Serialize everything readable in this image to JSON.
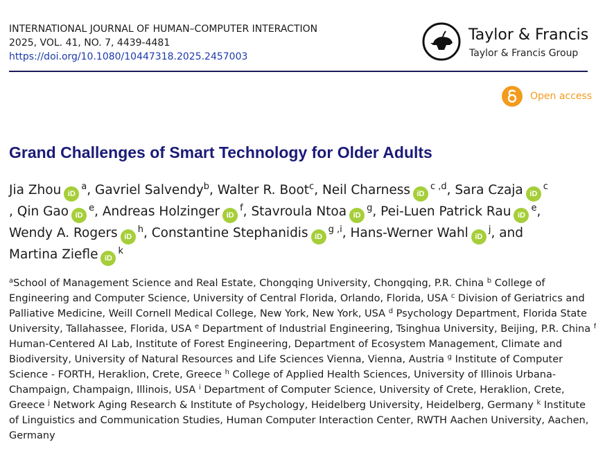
{
  "journal": {
    "name": "INTERNATIONAL JOURNAL OF HUMAN–COMPUTER INTERACTION",
    "issue": "2025, VOL. 41, NO. 7, 4439-4481",
    "doi": "https://doi.org/10.1080/10447318.2025.2457003"
  },
  "publisher": {
    "name": "Taylor & Francis",
    "group": "Taylor & Francis Group",
    "logo_icon": "lamp-logo-icon"
  },
  "open_access": {
    "label": "Open access",
    "color": "#f39b1d"
  },
  "article": {
    "title": "Grand Challenges of Smart Technology for Older Adults"
  },
  "orcid_label": "iD",
  "authors": [
    {
      "name": "Jia Zhou",
      "orcid": true,
      "aff": "a",
      "sep": ", "
    },
    {
      "name": "Gavriel Salvendy",
      "orcid": false,
      "aff": "b",
      "sep": ", "
    },
    {
      "name": "Walter R. Boot",
      "orcid": false,
      "aff": "c",
      "sep": ", "
    },
    {
      "name": "Neil Charness",
      "orcid": true,
      "aff": "c ,d",
      "sep": ", "
    },
    {
      "name": "Sara Czaja",
      "orcid": true,
      "aff": "c",
      "sep": ""
    },
    {
      "name": "Qin Gao",
      "orcid": true,
      "aff": "e",
      "sep": ", ",
      "lead": ", "
    },
    {
      "name": "Andreas Holzinger",
      "orcid": true,
      "aff": "f",
      "sep": ", "
    },
    {
      "name": "Stavroula Ntoa",
      "orcid": true,
      "aff": "g",
      "sep": ", "
    },
    {
      "name": "Pei-Luen Patrick Rau",
      "orcid": true,
      "aff": "e",
      "sep": ","
    },
    {
      "name": "Wendy A. Rogers",
      "orcid": true,
      "aff": "h",
      "sep": ", "
    },
    {
      "name": "Constantine Stephanidis",
      "orcid": true,
      "aff": "g ,i",
      "sep": ", "
    },
    {
      "name": "Hans-Werner Wahl",
      "orcid": true,
      "aff": "j",
      "sep": ", and"
    },
    {
      "name": "Martina Ziefle",
      "orcid": true,
      "aff": "k",
      "sep": ""
    }
  ],
  "affiliations": [
    {
      "sup": "a",
      "text": " School of Management Science and Real Estate, Chongqing University, Chongqing, P.R. China "
    },
    {
      "sup": "b",
      "text": " College of Engineering and Computer Science, University of Central Florida, Orlando, Florida, USA "
    },
    {
      "sup": "c",
      "text": " Division of Geriatrics and Palliative Medicine, Weill Cornell Medical College, New York, New York, USA "
    },
    {
      "sup": "d",
      "text": " Psychology Department, Florida State University, Tallahassee, Florida, USA "
    },
    {
      "sup": "e",
      "text": " Department of Industrial Engineering, Tsinghua University, Beijing, P.R. China "
    },
    {
      "sup": "f",
      "text": " Human-Centered AI Lab, Institute of Forest Engineering, Department of Ecosystem Management, Climate and Biodiversity, University of Natural Resources and Life Sciences Vienna, Vienna, Austria "
    },
    {
      "sup": "g",
      "text": " Institute of Computer Science - FORTH, Heraklion, Crete, Greece "
    },
    {
      "sup": "h",
      "text": " College of Applied Health Sciences, University of Illinois Urbana-Champaign, Champaign, Illinois, USA "
    },
    {
      "sup": "i",
      "text": " Department of Computer Science, University of Crete, Heraklion, Crete, Greece "
    },
    {
      "sup": "j",
      "text": " Network Aging Research & Institute of Psychology, Heidelberg University, Heidelberg, Germany "
    },
    {
      "sup": "k",
      "text": " Institute of Linguistics and Communication Studies, Human Computer Interaction Center, RWTH Aachen University, Aachen, Germany"
    }
  ]
}
